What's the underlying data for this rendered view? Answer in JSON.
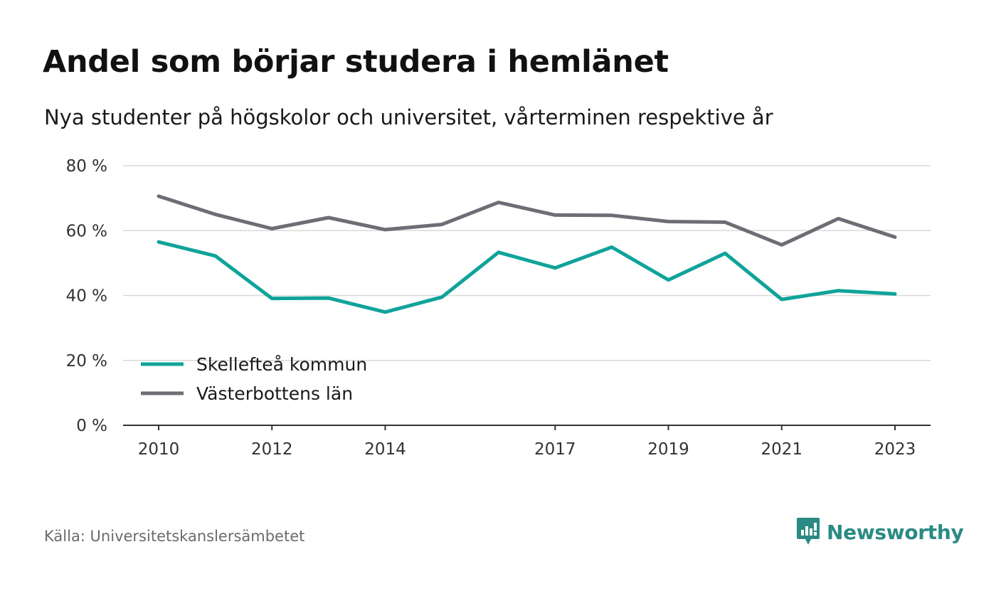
{
  "header": {
    "title": "Andel som börjar studera i hemlänet",
    "subtitle": "Nya studenter på högskolor och universitet, vårterminen respektive år"
  },
  "footer": {
    "source": "Källa: Universitetskanslersämbetet",
    "brand": "Newsworthy",
    "brand_icon": "newsworthy-logo-icon"
  },
  "colors": {
    "series_1": "#0fa39a",
    "series_2": "#6e6d75",
    "grid": "#d9d9d9",
    "axis": "#333333",
    "brand": "#2b8a84"
  },
  "chart_data": {
    "type": "line",
    "title": "Andel som börjar studera i hemlänet",
    "subtitle": "Nya studenter på högskolor och universitet, vårterminen respektive år",
    "x": [
      2010,
      2011,
      2012,
      2013,
      2014,
      2015,
      2016,
      2017,
      2018,
      2019,
      2020,
      2021,
      2022,
      2023
    ],
    "x_ticks": [
      2010,
      2012,
      2014,
      2017,
      2019,
      2021,
      2023
    ],
    "x_tick_labels": [
      "2010",
      "2012",
      "2014",
      "2017",
      "2019",
      "2021",
      "2023"
    ],
    "y_ticks": [
      0,
      20,
      40,
      60,
      80
    ],
    "y_tick_labels": [
      "0 %",
      "20 %",
      "40 %",
      "60 %",
      "80 %"
    ],
    "ylim": [
      0,
      80
    ],
    "grid": true,
    "legend_position": "bottom-left",
    "series": [
      {
        "name": "Skellefteå kommun",
        "color": "#0fa39a",
        "values": [
          56.5,
          52.2,
          39.1,
          39.2,
          34.9,
          39.5,
          53.3,
          48.5,
          54.9,
          44.8,
          53.0,
          38.8,
          41.5,
          40.5
        ]
      },
      {
        "name": "Västerbottens län",
        "color": "#6e6d75",
        "values": [
          70.6,
          65.0,
          60.6,
          64.0,
          60.3,
          61.9,
          68.7,
          64.8,
          64.7,
          62.8,
          62.6,
          55.6,
          63.7,
          58.0
        ]
      }
    ]
  }
}
